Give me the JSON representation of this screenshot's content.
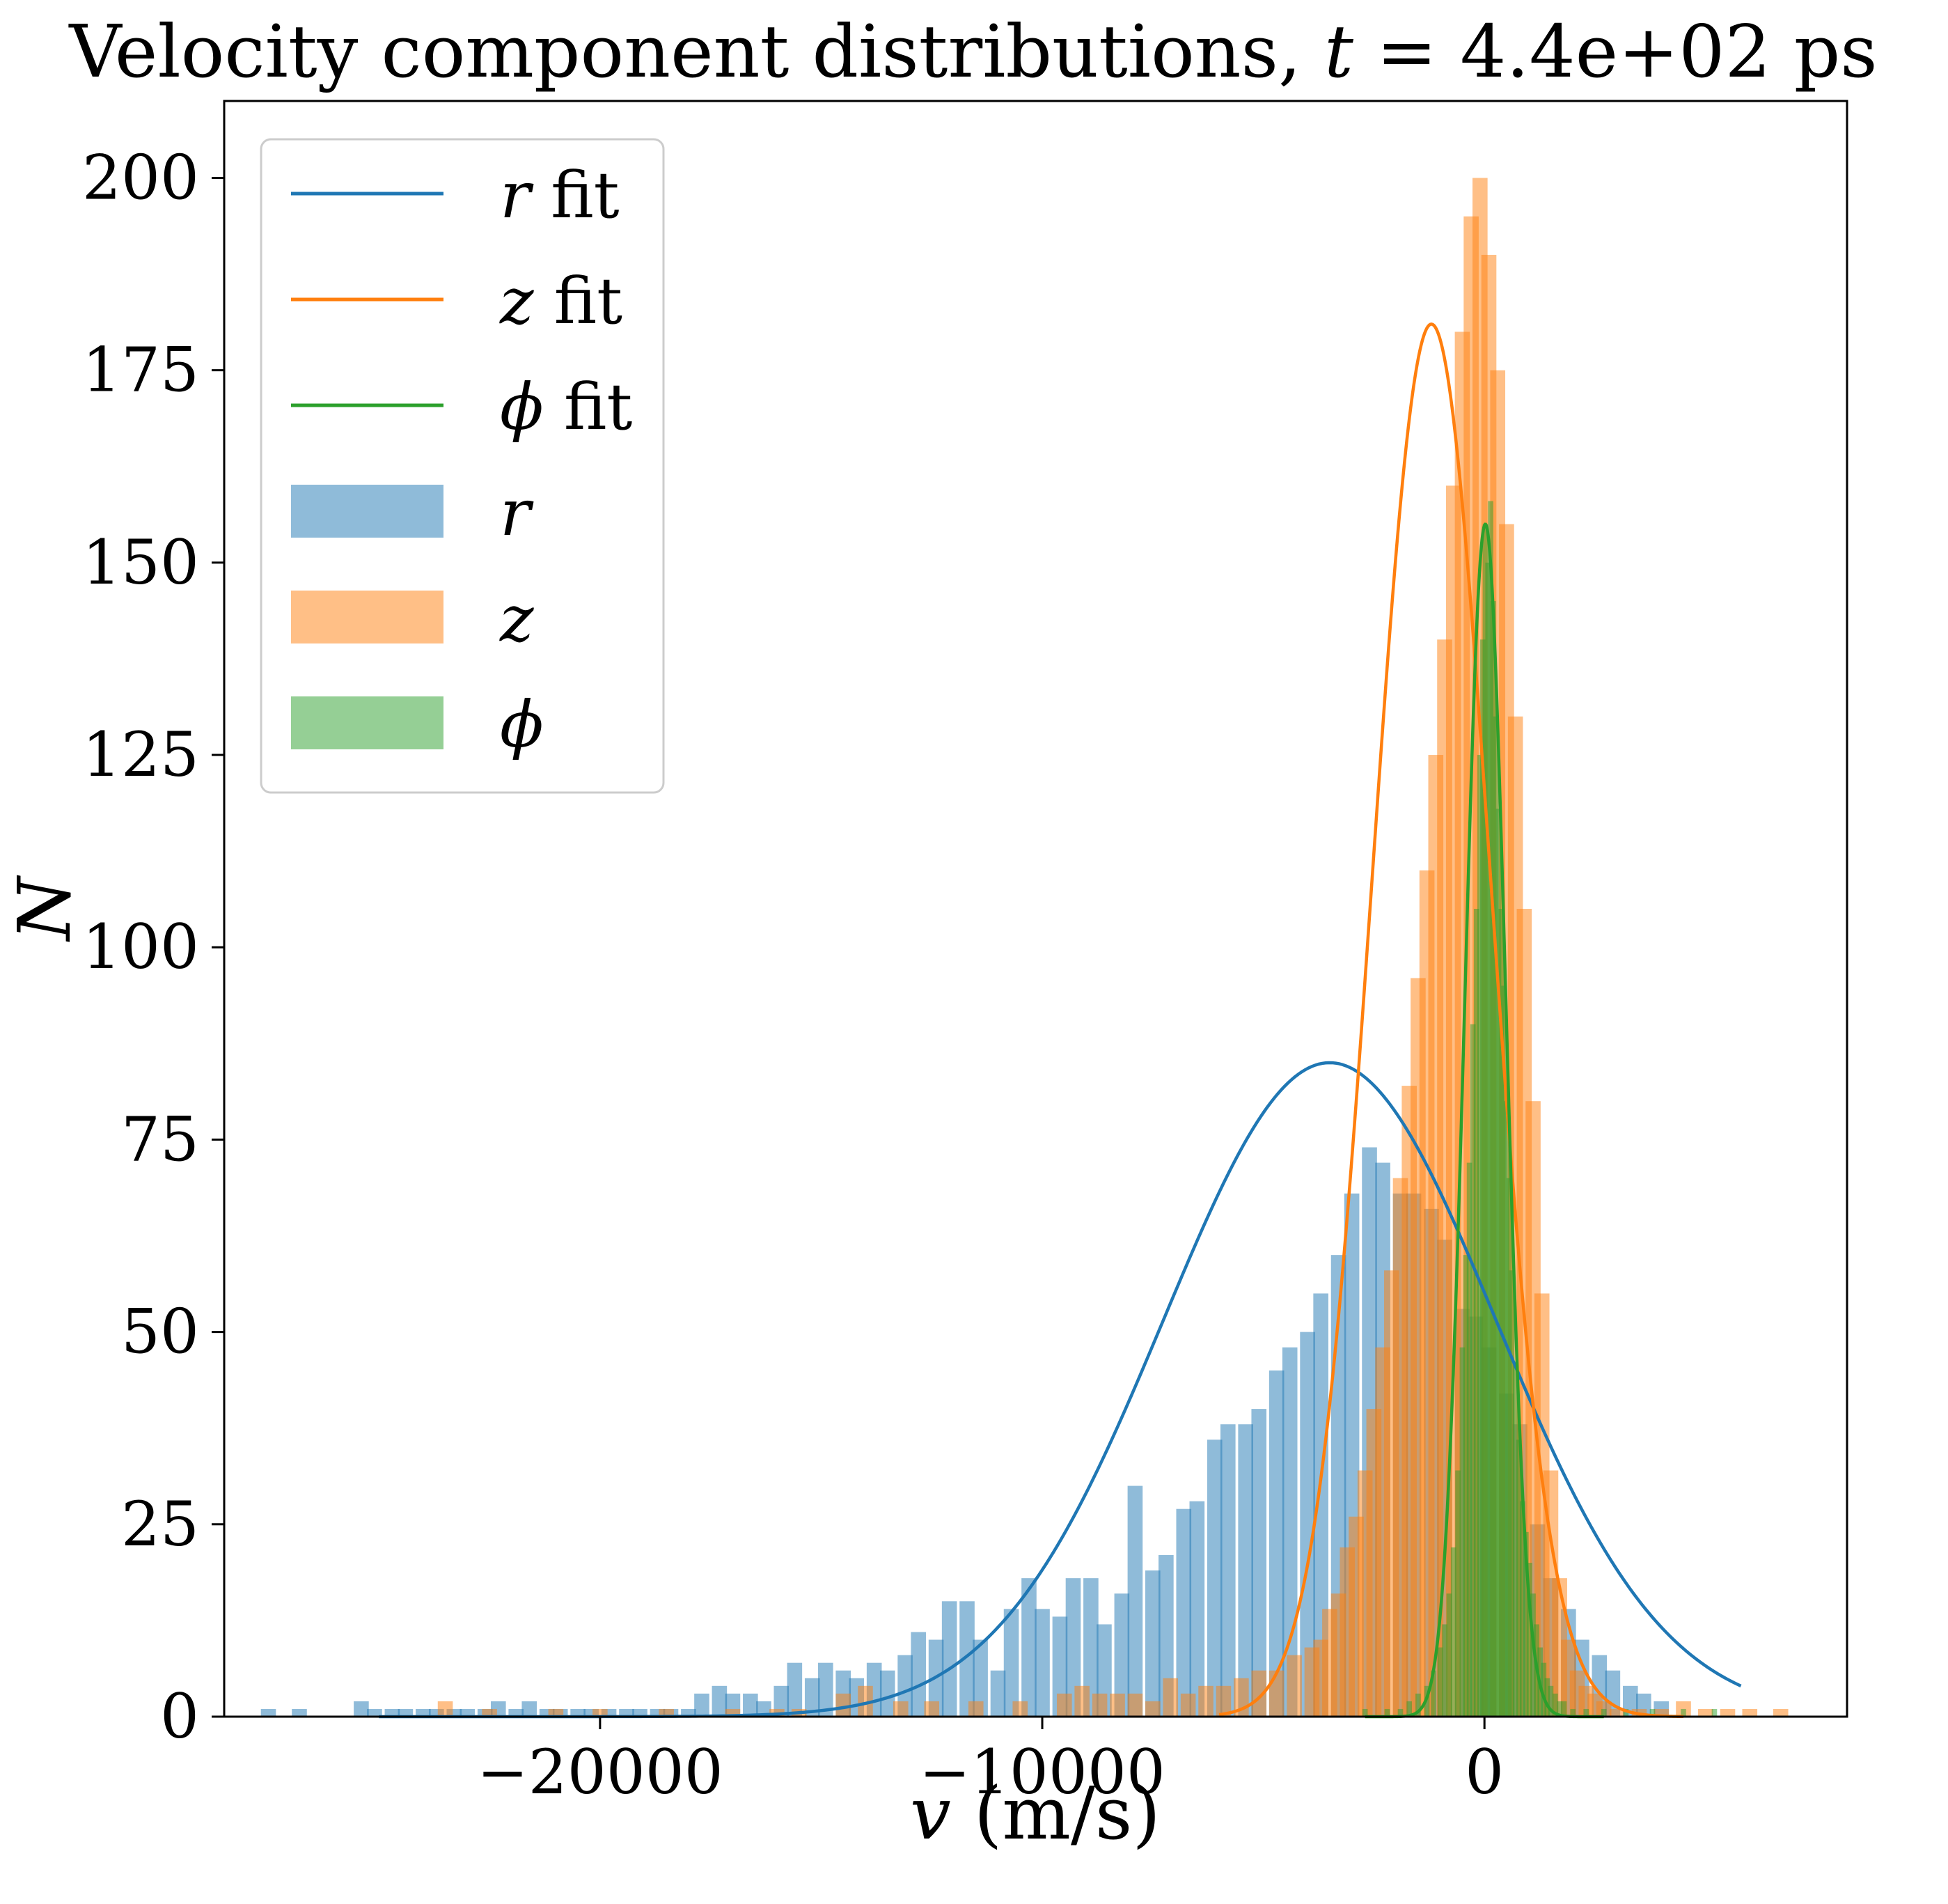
{
  "chart_data": {
    "type": "histogram",
    "title": "Velocity component distributions, t = 4.4e+02 ps",
    "title_parts": {
      "prefix": "Velocity component distributions, ",
      "var": "t",
      "suffix": " = 4.4e+02 ps"
    },
    "xlabel": "v (m/s)",
    "xlabel_parts": {
      "var": "v",
      "unit": " (m/s)"
    },
    "ylabel": "N",
    "xlim": [
      -28500,
      8200
    ],
    "ylim": [
      0,
      210
    ],
    "xticks": [
      -20000,
      -10000,
      0
    ],
    "xtick_labels": [
      "−20000",
      "−10000",
      "0"
    ],
    "yticks": [
      0,
      25,
      50,
      75,
      100,
      125,
      150,
      175,
      200
    ],
    "ytick_labels": [
      "0",
      "25",
      "50",
      "75",
      "100",
      "125",
      "150",
      "175",
      "200"
    ],
    "grid": false,
    "legend_position": "upper-left",
    "legend": [
      {
        "var": "r",
        "suffix": " fit",
        "kind": "line",
        "color": "#1f77b4"
      },
      {
        "var": "z",
        "suffix": " fit",
        "kind": "line",
        "color": "#ff7f0e"
      },
      {
        "var": "ϕ",
        "suffix": " fit",
        "kind": "line",
        "color": "#2ca02c"
      },
      {
        "var": "r",
        "suffix": "",
        "kind": "patch",
        "color": "#1f77b4"
      },
      {
        "var": "z",
        "suffix": "",
        "kind": "patch",
        "color": "#ff7f0e"
      },
      {
        "var": "ϕ",
        "suffix": "",
        "kind": "patch",
        "color": "#2ca02c"
      }
    ],
    "series": [
      {
        "name": "r",
        "color": "#1f77b4",
        "bin_width": 340,
        "bins": [
          [
            -27500,
            1
          ],
          [
            -26800,
            1
          ],
          [
            -25400,
            2
          ],
          [
            -25100,
            1
          ],
          [
            -24700,
            1
          ],
          [
            -24400,
            1
          ],
          [
            -24000,
            1
          ],
          [
            -23700,
            1
          ],
          [
            -23300,
            1
          ],
          [
            -23000,
            1
          ],
          [
            -22600,
            1
          ],
          [
            -22300,
            2
          ],
          [
            -21900,
            1
          ],
          [
            -21600,
            2
          ],
          [
            -21200,
            1
          ],
          [
            -20900,
            1
          ],
          [
            -20500,
            1
          ],
          [
            -20200,
            1
          ],
          [
            -19800,
            1
          ],
          [
            -19400,
            1
          ],
          [
            -19100,
            1
          ],
          [
            -18700,
            1
          ],
          [
            -18400,
            1
          ],
          [
            -18000,
            1
          ],
          [
            -17700,
            3
          ],
          [
            -17300,
            4
          ],
          [
            -17000,
            3
          ],
          [
            -16600,
            3
          ],
          [
            -16300,
            2
          ],
          [
            -15900,
            4
          ],
          [
            -15600,
            7
          ],
          [
            -15200,
            5
          ],
          [
            -14900,
            7
          ],
          [
            -14500,
            6
          ],
          [
            -14200,
            5
          ],
          [
            -13800,
            7
          ],
          [
            -13500,
            6
          ],
          [
            -13100,
            8
          ],
          [
            -12800,
            11
          ],
          [
            -12400,
            10
          ],
          [
            -12100,
            15
          ],
          [
            -11700,
            15
          ],
          [
            -11400,
            10
          ],
          [
            -11000,
            6
          ],
          [
            -10700,
            14
          ],
          [
            -10300,
            18
          ],
          [
            -10000,
            14
          ],
          [
            -9600,
            13
          ],
          [
            -9300,
            18
          ],
          [
            -8900,
            18
          ],
          [
            -8600,
            12
          ],
          [
            -8200,
            16
          ],
          [
            -7900,
            30
          ],
          [
            -7500,
            19
          ],
          [
            -7200,
            21
          ],
          [
            -6800,
            27
          ],
          [
            -6500,
            28
          ],
          [
            -6100,
            36
          ],
          [
            -5800,
            38
          ],
          [
            -5400,
            38
          ],
          [
            -5100,
            40
          ],
          [
            -4700,
            45
          ],
          [
            -4400,
            48
          ],
          [
            -4000,
            50
          ],
          [
            -3700,
            55
          ],
          [
            -3300,
            60
          ],
          [
            -3000,
            68
          ],
          [
            -2600,
            74
          ],
          [
            -2300,
            72
          ],
          [
            -1900,
            68
          ],
          [
            -1600,
            68
          ],
          [
            -1200,
            66
          ],
          [
            -900,
            62
          ],
          [
            -500,
            53
          ],
          [
            -200,
            52
          ],
          [
            100,
            48
          ],
          [
            500,
            42
          ],
          [
            800,
            38
          ],
          [
            1200,
            25
          ],
          [
            1500,
            18
          ],
          [
            1900,
            14
          ],
          [
            2200,
            10
          ],
          [
            2600,
            8
          ],
          [
            2900,
            6
          ],
          [
            3300,
            4
          ],
          [
            3600,
            3
          ],
          [
            4000,
            2
          ]
        ],
        "fit": {
          "amplitude": 85,
          "mean": -3500,
          "sigma": 3760,
          "x_range": [
            -25000,
            5800
          ]
        }
      },
      {
        "name": "z",
        "color": "#ff7f0e",
        "bin_width": 340,
        "bins": [
          [
            -23500,
            2
          ],
          [
            -22500,
            1
          ],
          [
            -21000,
            1
          ],
          [
            -20000,
            1
          ],
          [
            -18500,
            1
          ],
          [
            -17000,
            1
          ],
          [
            -16000,
            1
          ],
          [
            -15500,
            1
          ],
          [
            -14500,
            3
          ],
          [
            -14000,
            4
          ],
          [
            -13200,
            2
          ],
          [
            -12500,
            2
          ],
          [
            -11500,
            2
          ],
          [
            -10500,
            2
          ],
          [
            -9500,
            3
          ],
          [
            -9100,
            4
          ],
          [
            -8700,
            3
          ],
          [
            -8300,
            3
          ],
          [
            -7900,
            3
          ],
          [
            -7500,
            2
          ],
          [
            -7100,
            5
          ],
          [
            -6700,
            3
          ],
          [
            -6300,
            4
          ],
          [
            -5900,
            4
          ],
          [
            -5500,
            5
          ],
          [
            -5100,
            6
          ],
          [
            -4700,
            6
          ],
          [
            -4300,
            8
          ],
          [
            -3900,
            9
          ],
          [
            -3700,
            10
          ],
          [
            -3500,
            14
          ],
          [
            -3300,
            16
          ],
          [
            -3100,
            22
          ],
          [
            -2900,
            26
          ],
          [
            -2700,
            32
          ],
          [
            -2500,
            40
          ],
          [
            -2300,
            48
          ],
          [
            -2100,
            58
          ],
          [
            -1900,
            70
          ],
          [
            -1700,
            82
          ],
          [
            -1500,
            96
          ],
          [
            -1300,
            110
          ],
          [
            -1100,
            125
          ],
          [
            -900,
            140
          ],
          [
            -700,
            160
          ],
          [
            -500,
            180
          ],
          [
            -300,
            195
          ],
          [
            -100,
            200
          ],
          [
            100,
            190
          ],
          [
            300,
            175
          ],
          [
            500,
            155
          ],
          [
            700,
            130
          ],
          [
            900,
            105
          ],
          [
            1100,
            80
          ],
          [
            1300,
            55
          ],
          [
            1500,
            32
          ],
          [
            1700,
            18
          ],
          [
            1900,
            10
          ],
          [
            2100,
            6
          ],
          [
            2300,
            4
          ],
          [
            2500,
            3
          ],
          [
            2700,
            2
          ],
          [
            3000,
            1
          ],
          [
            3500,
            1
          ],
          [
            4000,
            1
          ],
          [
            4500,
            2
          ],
          [
            5000,
            1
          ],
          [
            5500,
            1
          ],
          [
            6000,
            1
          ],
          [
            6700,
            1
          ]
        ],
        "fit": {
          "amplitude": 181,
          "mean": -1200,
          "sigma": 1330,
          "x_range": [
            -6000,
            4500
          ]
        }
      },
      {
        "name": "ϕ",
        "color": "#2ca02c",
        "bin_width": 120,
        "bins": [
          [
            -2700,
            1
          ],
          [
            -2200,
            1
          ],
          [
            -1900,
            1
          ],
          [
            -1700,
            2
          ],
          [
            -1500,
            3
          ],
          [
            -1300,
            4
          ],
          [
            -1150,
            6
          ],
          [
            -1000,
            9
          ],
          [
            -900,
            12
          ],
          [
            -800,
            16
          ],
          [
            -700,
            22
          ],
          [
            -600,
            32
          ],
          [
            -500,
            48
          ],
          [
            -420,
            60
          ],
          [
            -340,
            72
          ],
          [
            -260,
            90
          ],
          [
            -180,
            105
          ],
          [
            -100,
            125
          ],
          [
            -40,
            140
          ],
          [
            20,
            155
          ],
          [
            80,
            150
          ],
          [
            140,
            158
          ],
          [
            200,
            145
          ],
          [
            260,
            130
          ],
          [
            320,
            118
          ],
          [
            380,
            105
          ],
          [
            440,
            95
          ],
          [
            500,
            80
          ],
          [
            560,
            70
          ],
          [
            620,
            58
          ],
          [
            700,
            46
          ],
          [
            780,
            36
          ],
          [
            860,
            28
          ],
          [
            940,
            24
          ],
          [
            1020,
            20
          ],
          [
            1100,
            16
          ],
          [
            1180,
            12
          ],
          [
            1260,
            9
          ],
          [
            1340,
            7
          ],
          [
            1420,
            5
          ],
          [
            1500,
            4
          ],
          [
            1600,
            3
          ],
          [
            1700,
            2
          ],
          [
            1800,
            2
          ],
          [
            2000,
            1
          ],
          [
            2300,
            1
          ],
          [
            2700,
            1
          ],
          [
            3200,
            1
          ],
          [
            3800,
            1
          ],
          [
            4500,
            1
          ],
          [
            5200,
            1
          ]
        ],
        "fit": {
          "amplitude": 155,
          "mean": 20,
          "sigma": 460,
          "x_range": [
            -2700,
            2700
          ]
        }
      }
    ]
  }
}
